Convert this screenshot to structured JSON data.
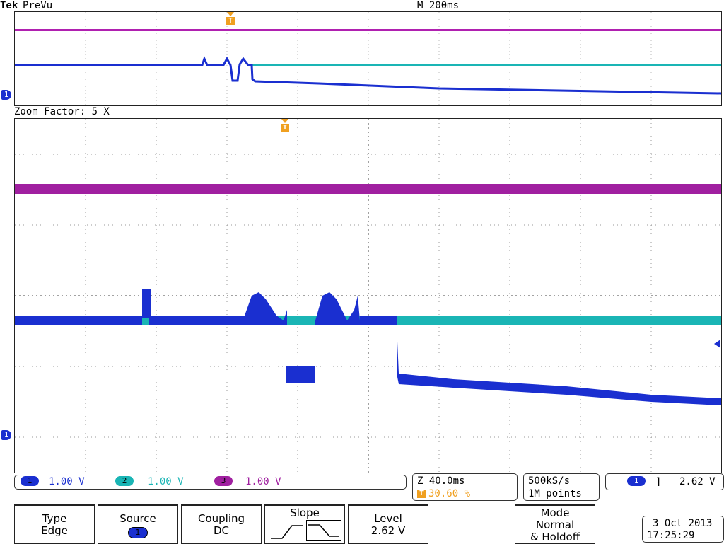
{
  "header": {
    "brand": "Tek",
    "mode": "PreVu",
    "timebase": "M 200ms"
  },
  "zoom_label": "Zoom Factor: 5 X",
  "channels": [
    {
      "num": "1",
      "scale": "1.00 V",
      "color": "#1a2fd0"
    },
    {
      "num": "2",
      "scale": "1.00 V",
      "color": "#1ab5b5"
    },
    {
      "num": "3",
      "scale": "1.00 V",
      "color": "#a020a0"
    }
  ],
  "trigger_marker": "T",
  "ch1_marker": "1",
  "zoom_info": {
    "position": "Z 40.0ms",
    "trigger_pct": "30.60 %"
  },
  "acquisition": {
    "rate": "500kS/s",
    "points": "1M points"
  },
  "trigger_status": {
    "source": "1",
    "slope_symbol": "⌉",
    "level": "2.62 V"
  },
  "menu": {
    "type": {
      "title": "Type",
      "value": "Edge"
    },
    "source": {
      "title": "Source",
      "value": "1"
    },
    "coupling": {
      "title": "Coupling",
      "value": "DC"
    },
    "slope": {
      "title": "Slope"
    },
    "level": {
      "title": "Level",
      "value": "2.62 V"
    },
    "mode": {
      "title": "Mode",
      "line2": "Normal",
      "line3": "& Holdoff"
    }
  },
  "datetime": {
    "date": "3 Oct  2013",
    "time": "17:25:29"
  },
  "colors": {
    "ch1": "#1a2fd0",
    "ch2": "#1ab5b5",
    "ch3": "#a020a0",
    "trigger": "#f0a020"
  }
}
